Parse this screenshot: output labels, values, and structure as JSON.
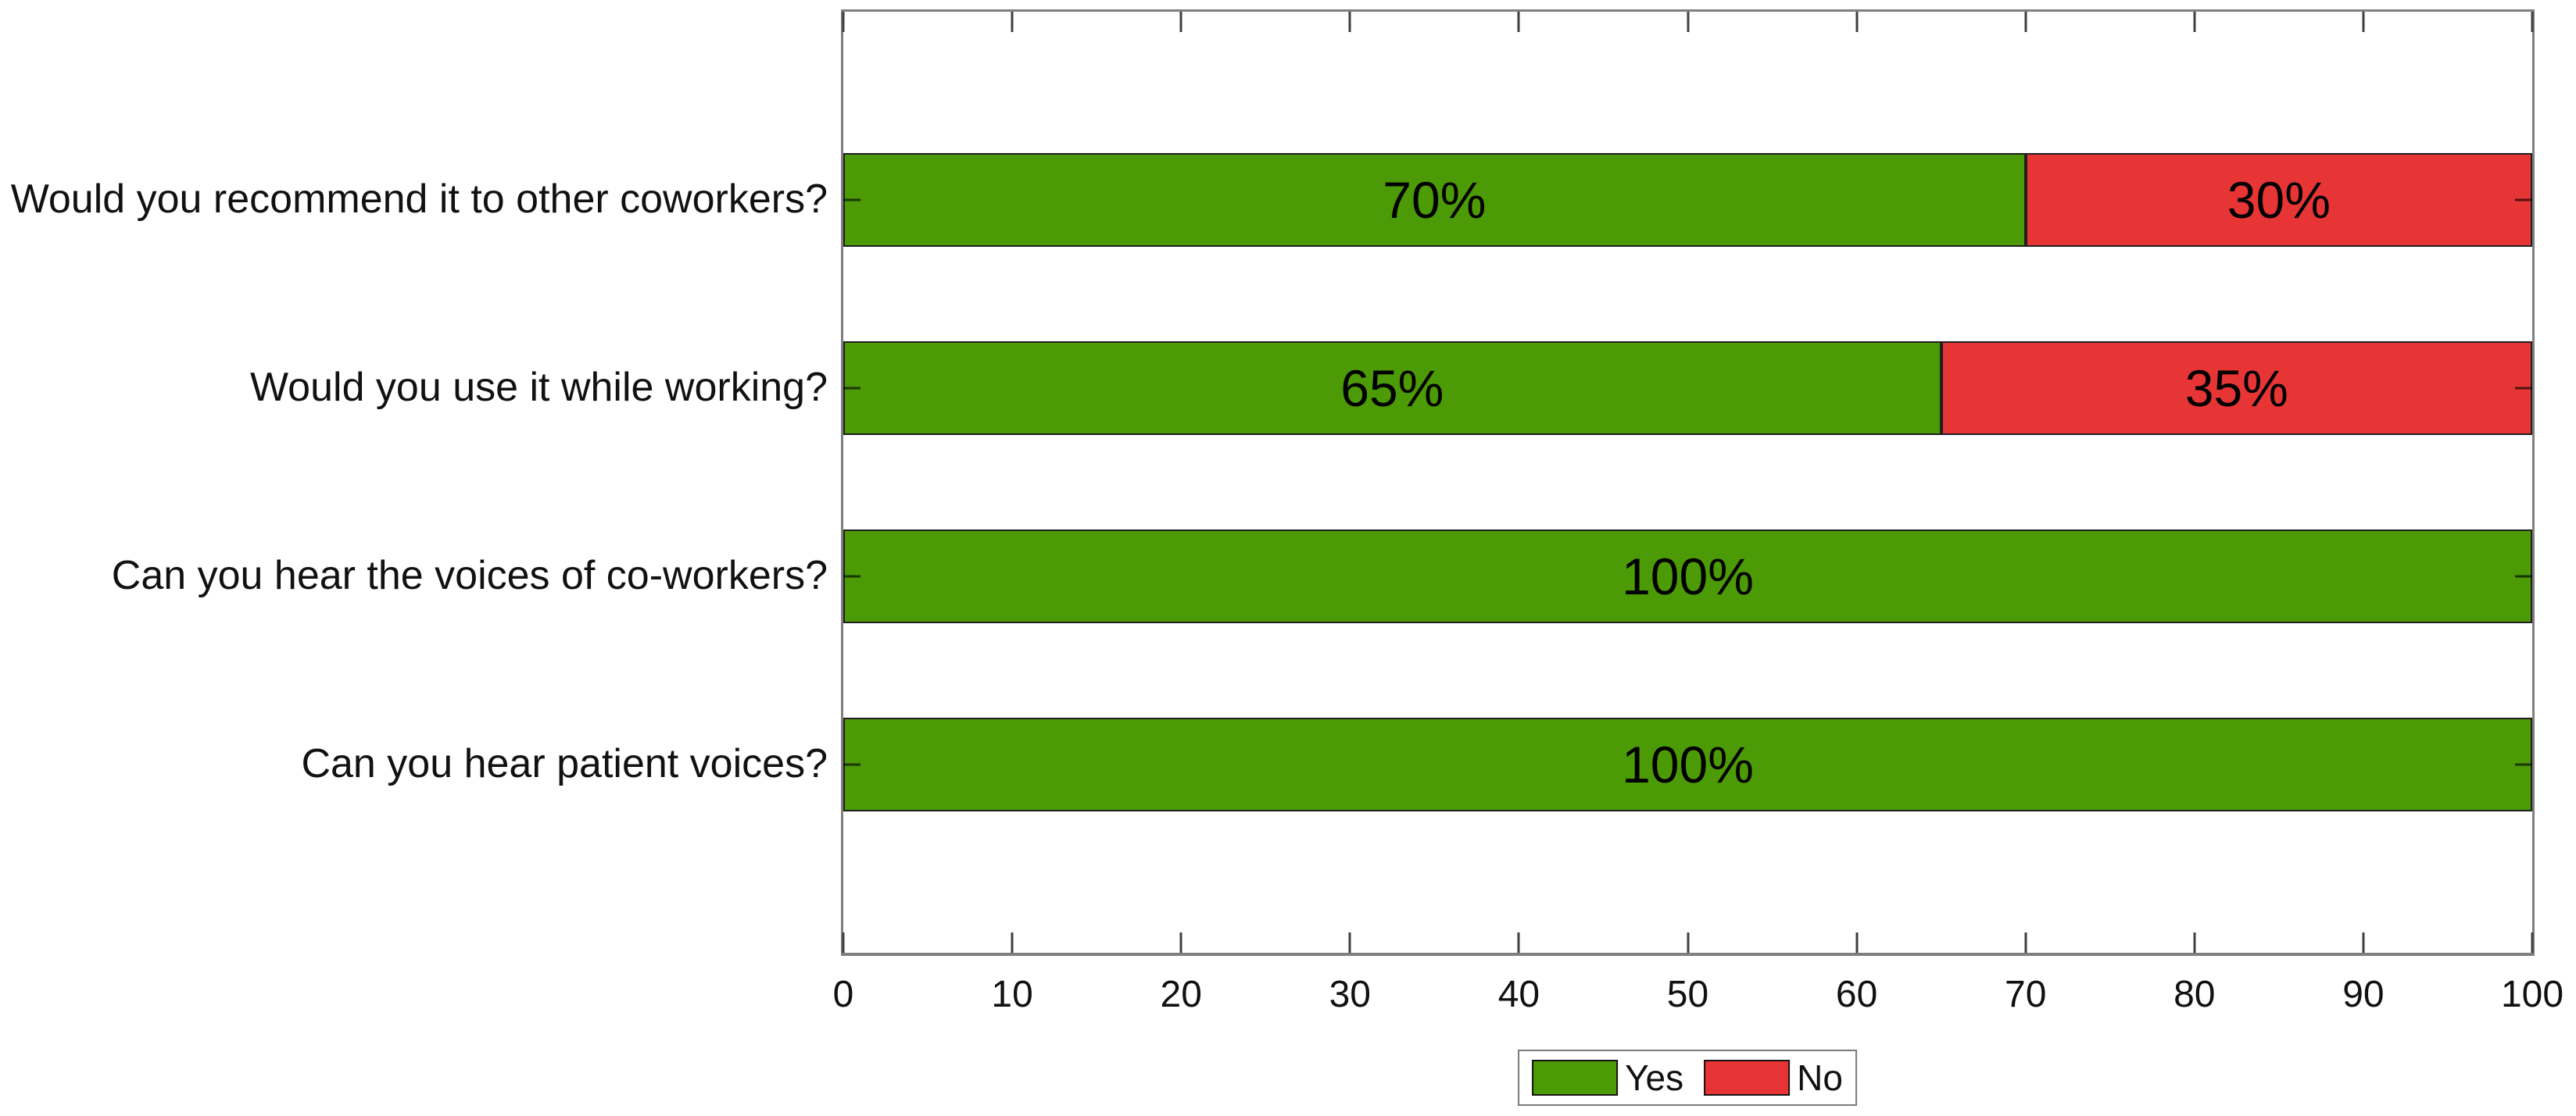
{
  "figure": {
    "background": "#ffffff"
  },
  "chart_data": {
    "type": "bar",
    "orientation": "horizontal",
    "stacked": true,
    "title": "",
    "xlabel": "",
    "ylabel": "",
    "xlim": [
      0,
      100
    ],
    "x_ticks": [
      0,
      10,
      20,
      30,
      40,
      50,
      60,
      70,
      80,
      90,
      100
    ],
    "grid": false,
    "categories": [
      "Would you recommend it to other coworkers?",
      "Would you use it while working?",
      "Can you hear the voices of co-workers?",
      "Can you hear patient voices?"
    ],
    "series": [
      {
        "name": "Yes",
        "color": "#4c9a06",
        "values": [
          70,
          65,
          100,
          100
        ]
      },
      {
        "name": "No",
        "color": "#e73535",
        "values": [
          30,
          35,
          0,
          0
        ]
      }
    ],
    "bar_value_labels": [
      [
        "70%",
        "30%"
      ],
      [
        "65%",
        "35%"
      ],
      [
        "100%",
        ""
      ],
      [
        "100%",
        ""
      ]
    ],
    "legend": {
      "position": "bottom-center",
      "entries": [
        "Yes",
        "No"
      ]
    }
  },
  "style": {
    "axis_color": "#7f7f7f",
    "tick_color": "#3f3f3f",
    "text_color": "#111111",
    "bar_edge_color": "#1f1f1f",
    "legend_border_color": "#7a7a7a",
    "background": "#ffffff"
  }
}
